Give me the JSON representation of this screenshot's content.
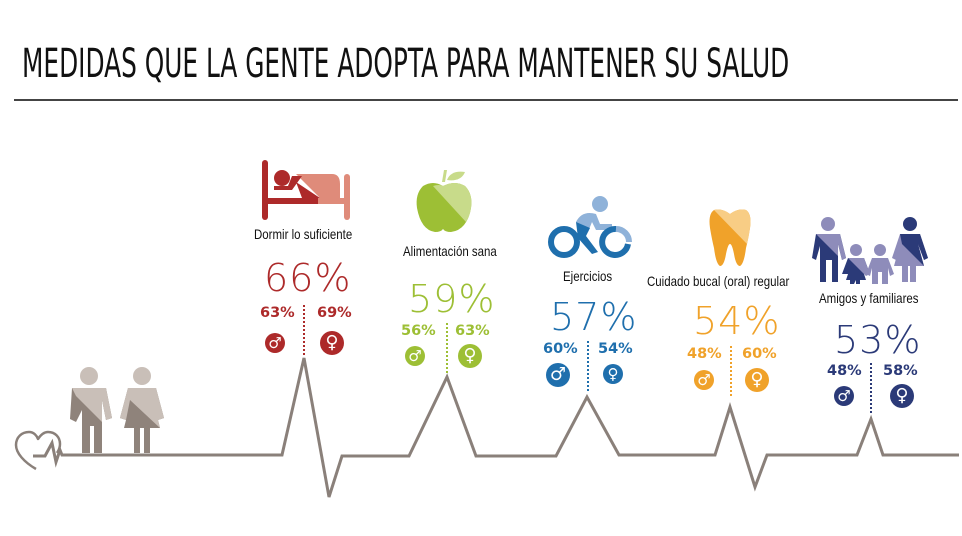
{
  "title": "MEDIDAS QUE LA GENTE ADOPTA PARA MANTENER SU SALUD",
  "categories": [
    {
      "id": "sleep",
      "label": "Dormir lo suficiente",
      "total": "66%",
      "male": "63%",
      "female": "69%",
      "icon": "bed-icon",
      "color": "#ad2a2a",
      "light": "#df8b7a"
    },
    {
      "id": "food",
      "label": "Alimentación sana",
      "total": "59%",
      "male": "56%",
      "female": "63%",
      "icon": "apple-icon",
      "color": "#9dbf35",
      "light": "#c8db8a"
    },
    {
      "id": "exercise",
      "label": "Ejercicios",
      "total": "57%",
      "male": "60%",
      "female": "54%",
      "icon": "cyclist-icon",
      "color": "#1f6fad",
      "light": "#8fb2d9"
    },
    {
      "id": "oral",
      "label": "Cuidado bucal (oral) regular",
      "total": "54%",
      "male": "48%",
      "female": "60%",
      "icon": "tooth-icon",
      "color": "#f0a22a",
      "light": "#f8cd85"
    },
    {
      "id": "social",
      "label": "Amigos y familiares",
      "total": "53%",
      "male": "48%",
      "female": "58%",
      "icon": "family-icon",
      "color": "#2b3a78",
      "light": "#8e8cba"
    }
  ],
  "symbols": {
    "male": "♂",
    "female": "♀"
  },
  "colors": {
    "ekg_line": "#8a807a",
    "people": "#8f837b",
    "people_light": "#c9bfb8",
    "title": "#111111"
  }
}
